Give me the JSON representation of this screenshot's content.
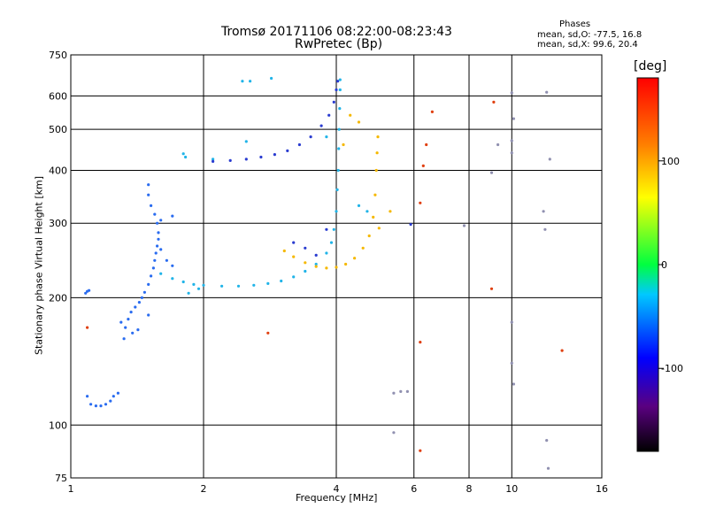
{
  "chart_data": {
    "type": "scatter",
    "title": "Tromsø 20171106 08:22:00-08:23:43",
    "subtitle": "RwPretec (Bp)",
    "phases": {
      "heading": "Phases",
      "o_text": "mean, sd,O: -77.5, 16.8",
      "x_text": "mean, sd,X:  99.6, 20.4"
    },
    "xlabel": "Frequency [MHz]",
    "ylabel": "Stationary phase Virtual Height [km]",
    "x_scale": "log",
    "y_scale": "log",
    "xlim": [
      1,
      16
    ],
    "ylim": [
      75,
      750
    ],
    "x_ticks": [
      1,
      2,
      4,
      6,
      8,
      10,
      16
    ],
    "x_tick_labels": [
      "1",
      "2",
      "4",
      "6",
      "8",
      "10",
      "16"
    ],
    "y_ticks": [
      75,
      100,
      200,
      300,
      400,
      500,
      600,
      750
    ],
    "y_tick_labels": [
      "75",
      "100",
      "200",
      "300",
      "400",
      "500",
      "600",
      "750"
    ],
    "grid": true,
    "colorbar": {
      "label": "[deg]",
      "range": [
        -180,
        180
      ],
      "ticks": [
        100,
        0,
        -100
      ],
      "tick_labels": [
        "100",
        "0",
        "-100"
      ]
    },
    "series": [
      {
        "name": "",
        "color": "#2a6cf0",
        "phase": -70,
        "points": [
          [
            1.11,
            112
          ],
          [
            1.14,
            111
          ],
          [
            1.17,
            111
          ],
          [
            1.2,
            112
          ],
          [
            1.23,
            114
          ],
          [
            1.25,
            117
          ],
          [
            1.09,
            117
          ],
          [
            1.28,
            119
          ],
          [
            1.08,
            205
          ],
          [
            1.09,
            207
          ],
          [
            1.1,
            208
          ]
        ]
      },
      {
        "name": "",
        "color": "#2a6cf0",
        "phase": -70,
        "points": [
          [
            1.32,
            160
          ],
          [
            1.33,
            170
          ],
          [
            1.35,
            178
          ],
          [
            1.37,
            185
          ],
          [
            1.4,
            190
          ],
          [
            1.43,
            195
          ],
          [
            1.45,
            200
          ],
          [
            1.47,
            206
          ],
          [
            1.5,
            215
          ],
          [
            1.52,
            225
          ],
          [
            1.54,
            235
          ],
          [
            1.55,
            245
          ],
          [
            1.56,
            255
          ],
          [
            1.57,
            265
          ],
          [
            1.58,
            275
          ],
          [
            1.58,
            285
          ],
          [
            1.57,
            300
          ],
          [
            1.55,
            315
          ],
          [
            1.52,
            330
          ],
          [
            1.5,
            350
          ],
          [
            1.5,
            370
          ],
          [
            1.6,
            260
          ],
          [
            1.65,
            245
          ],
          [
            1.7,
            238
          ],
          [
            1.3,
            175
          ],
          [
            1.38,
            165
          ],
          [
            1.42,
            168
          ],
          [
            1.5,
            182
          ],
          [
            1.6,
            305
          ],
          [
            1.7,
            312
          ]
        ]
      },
      {
        "name": "",
        "color": "#21b4e8",
        "phase": -90,
        "points": [
          [
            1.6,
            228
          ],
          [
            1.7,
            222
          ],
          [
            1.8,
            218
          ],
          [
            1.9,
            215
          ],
          [
            2.0,
            214
          ],
          [
            2.2,
            213
          ],
          [
            2.4,
            213
          ],
          [
            2.6,
            214
          ],
          [
            2.8,
            216
          ],
          [
            3.0,
            219
          ],
          [
            3.2,
            224
          ],
          [
            3.4,
            231
          ],
          [
            3.6,
            240
          ],
          [
            3.8,
            255
          ],
          [
            3.9,
            270
          ],
          [
            3.95,
            290
          ],
          [
            4.0,
            320
          ],
          [
            4.02,
            360
          ],
          [
            4.04,
            400
          ],
          [
            4.05,
            450
          ],
          [
            4.06,
            500
          ],
          [
            4.07,
            560
          ],
          [
            4.08,
            620
          ],
          [
            4.08,
            655
          ],
          [
            1.85,
            205
          ],
          [
            1.95,
            210
          ],
          [
            1.8,
            438
          ],
          [
            1.82,
            430
          ],
          [
            2.1,
            425
          ],
          [
            2.5,
            468
          ],
          [
            2.45,
            650
          ],
          [
            2.55,
            650
          ],
          [
            2.85,
            660
          ],
          [
            3.8,
            480
          ],
          [
            4.5,
            330
          ],
          [
            4.7,
            320
          ]
        ]
      },
      {
        "name": "",
        "color": "#f5b800",
        "phase": 110,
        "points": [
          [
            3.05,
            258
          ],
          [
            3.2,
            250
          ],
          [
            3.4,
            242
          ],
          [
            3.6,
            237
          ],
          [
            3.8,
            235
          ],
          [
            4.0,
            236
          ],
          [
            4.2,
            240
          ],
          [
            4.4,
            248
          ],
          [
            4.6,
            262
          ],
          [
            4.75,
            280
          ],
          [
            4.85,
            310
          ],
          [
            4.9,
            350
          ],
          [
            4.93,
            400
          ],
          [
            4.95,
            440
          ],
          [
            4.97,
            480
          ],
          [
            4.5,
            520
          ],
          [
            4.3,
            540
          ],
          [
            4.15,
            460
          ],
          [
            5.0,
            292
          ],
          [
            5.3,
            320
          ]
        ]
      },
      {
        "name": "",
        "color": "#2a3cd0",
        "phase": -100,
        "points": [
          [
            2.1,
            420
          ],
          [
            2.3,
            422
          ],
          [
            2.5,
            425
          ],
          [
            2.7,
            430
          ],
          [
            2.9,
            436
          ],
          [
            3.1,
            445
          ],
          [
            3.3,
            460
          ],
          [
            3.5,
            480
          ],
          [
            3.7,
            510
          ],
          [
            3.85,
            540
          ],
          [
            3.95,
            580
          ],
          [
            4.0,
            620
          ],
          [
            4.03,
            650
          ],
          [
            3.2,
            270
          ],
          [
            3.4,
            262
          ],
          [
            3.6,
            252
          ],
          [
            3.8,
            290
          ],
          [
            5.9,
            298
          ]
        ]
      },
      {
        "name": "",
        "color": "#e04010",
        "phase": 150,
        "points": [
          [
            1.09,
            170
          ],
          [
            2.8,
            165
          ],
          [
            6.2,
            335
          ],
          [
            6.4,
            460
          ],
          [
            6.6,
            550
          ],
          [
            6.3,
            410
          ],
          [
            6.2,
            157
          ],
          [
            6.2,
            87
          ],
          [
            9.0,
            210
          ],
          [
            9.1,
            580
          ],
          [
            13.0,
            150
          ]
        ]
      },
      {
        "name": "",
        "color": "#9090b0",
        "phase": 0,
        "points": [
          [
            5.4,
            119
          ],
          [
            5.6,
            120
          ],
          [
            5.8,
            120
          ],
          [
            5.4,
            96
          ],
          [
            7.8,
            296
          ],
          [
            9.0,
            395
          ],
          [
            9.3,
            460
          ],
          [
            10.0,
            610
          ],
          [
            10.1,
            530
          ],
          [
            10.0,
            470
          ],
          [
            10.0,
            440
          ],
          [
            12.0,
            612
          ],
          [
            12.2,
            425
          ],
          [
            11.8,
            320
          ],
          [
            11.9,
            290
          ],
          [
            12.0,
            92
          ],
          [
            12.1,
            79
          ],
          [
            10.1,
            125
          ],
          [
            10.0,
            140
          ],
          [
            10.0,
            175
          ]
        ]
      }
    ]
  }
}
